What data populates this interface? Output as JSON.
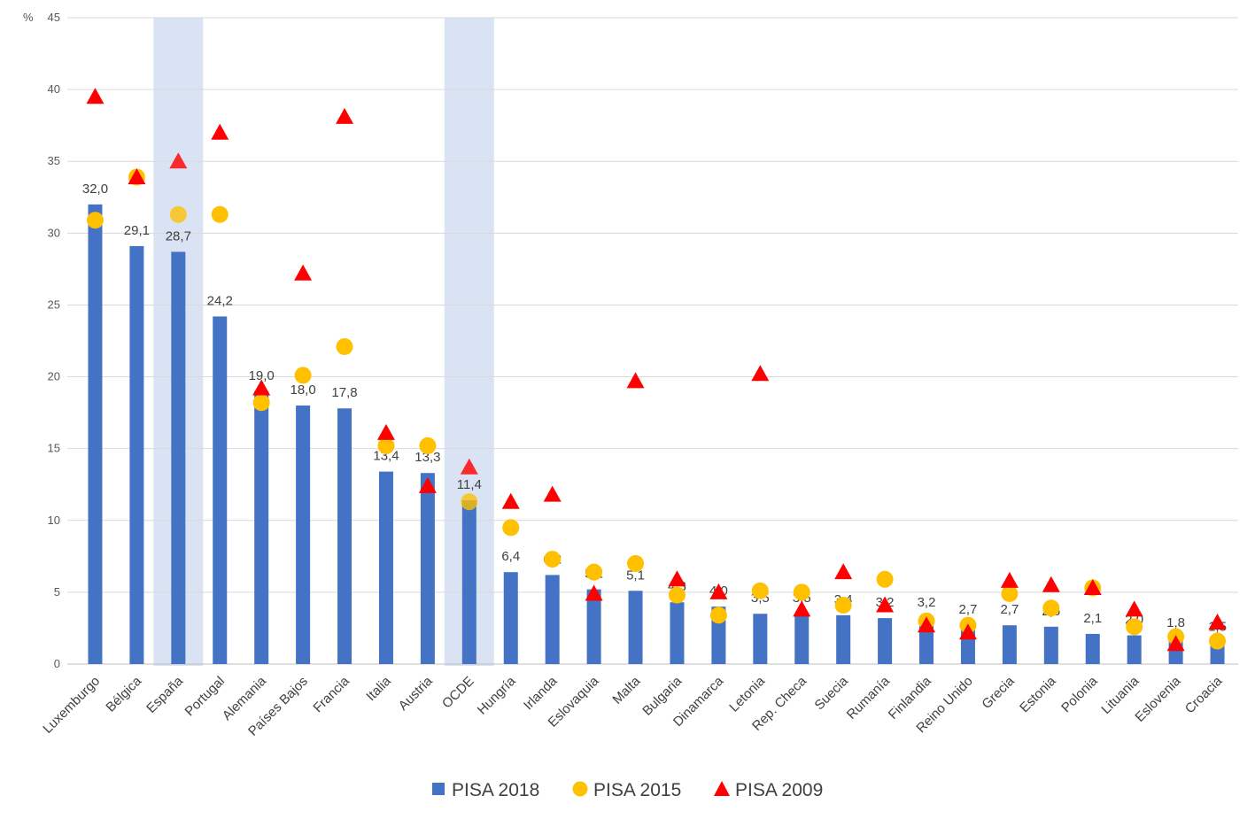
{
  "chart_data": {
    "type": "bar",
    "ylabel": "%",
    "ylim": [
      0,
      45
    ],
    "y_ticks": [
      0,
      5,
      10,
      15,
      20,
      25,
      30,
      35,
      40,
      45
    ],
    "grid": true,
    "legend_position": "bottom",
    "highlighted_categories": [
      "España",
      "OCDE"
    ],
    "categories": [
      "Luxemburgo",
      "Bélgica",
      "España",
      "Portugal",
      "Alemania",
      "Países Bajos",
      "Francia",
      "Italia",
      "Austria",
      "OCDE",
      "Hungría",
      "Irlanda",
      "Eslovaquia",
      "Malta",
      "Bulgaria",
      "Dinamarca",
      "Letonia",
      "Rep. Checa",
      "Suecia",
      "Rumanía",
      "Finlandia",
      "Reino Unido",
      "Grecia",
      "Estonia",
      "Polonia",
      "Lituania",
      "Eslovenia",
      "Croacia"
    ],
    "series": [
      {
        "name": "PISA 2018",
        "mark": "bar",
        "color": "#4472C4",
        "values": [
          32.0,
          29.1,
          28.7,
          24.2,
          19.0,
          18.0,
          17.8,
          13.4,
          13.3,
          11.4,
          6.4,
          6.2,
          5.2,
          5.1,
          4.3,
          4.0,
          3.5,
          3.5,
          3.4,
          3.2,
          3.2,
          2.7,
          2.7,
          2.6,
          2.1,
          2.0,
          1.8,
          1.5
        ],
        "labels": [
          "32,0",
          "29,1",
          "28,7",
          "24,2",
          "19,0",
          "18,0",
          "17,8",
          "13,4",
          "13,3",
          "11,4",
          "6,4",
          "6,2",
          "5,2",
          "5,1",
          "4,3",
          "4,0",
          "3,5",
          "3,5",
          "3,4",
          "3,2",
          "3,2",
          "2,7",
          "2,7",
          "2,6",
          "2,1",
          "2,0",
          "1,8",
          "1,5"
        ]
      },
      {
        "name": "PISA 2015",
        "mark": "circle",
        "color": "#FFC000",
        "values": [
          30.9,
          33.9,
          31.3,
          31.3,
          18.2,
          20.1,
          22.1,
          15.2,
          15.2,
          11.3,
          9.5,
          7.3,
          6.4,
          7.0,
          4.8,
          3.4,
          5.1,
          5.0,
          4.1,
          5.9,
          3.0,
          2.7,
          4.9,
          3.9,
          5.3,
          2.6,
          1.9,
          1.6
        ]
      },
      {
        "name": "PISA 2009",
        "mark": "triangle",
        "color": "#FF0000",
        "values": [
          39.5,
          33.9,
          35.0,
          37.0,
          19.2,
          27.2,
          38.1,
          16.1,
          12.4,
          13.7,
          11.3,
          11.8,
          4.9,
          19.7,
          5.9,
          5.0,
          20.2,
          3.8,
          6.4,
          4.1,
          2.7,
          2.2,
          5.8,
          5.5,
          5.3,
          3.8,
          1.4,
          2.9
        ]
      }
    ]
  }
}
